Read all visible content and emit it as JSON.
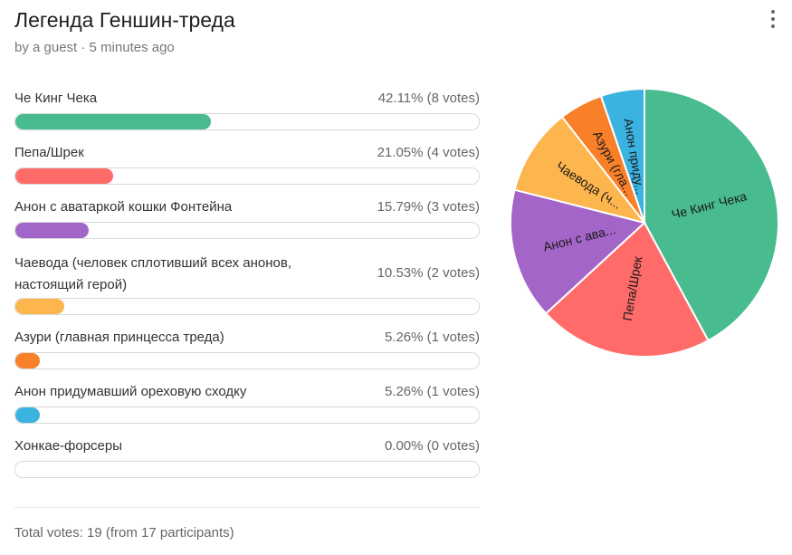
{
  "poll": {
    "title": "Легенда Геншин-треда",
    "meta": "by a guest · 5 minutes ago",
    "menu_icon": "more-vertical-icon",
    "options": [
      {
        "label": "Че Кинг Чека",
        "stats": "42.11% (8 votes)",
        "percent": 42.11,
        "votes": 8,
        "color": "#48BB8F",
        "pie_label": "Че Кинг Чека"
      },
      {
        "label": "Пепа/Шрек",
        "stats": "21.05% (4 votes)",
        "percent": 21.05,
        "votes": 4,
        "color": "#FF6B69",
        "pie_label": "Пепа/Шрек"
      },
      {
        "label": "Анон с аватаркой кошки Фонтейна",
        "stats": "15.79% (3 votes)",
        "percent": 15.79,
        "votes": 3,
        "color": "#A465C8",
        "pie_label": "Анон с ава..."
      },
      {
        "label": "Чаевода (человек сплотивший всех анонов, настоящий герой)",
        "stats": "10.53% (2 votes)",
        "percent": 10.53,
        "votes": 2,
        "color": "#FDB54D",
        "pie_label": "Чаевода (ч..."
      },
      {
        "label": "Азури (главная принцесса треда)",
        "stats": "5.26% (1 votes)",
        "percent": 5.26,
        "votes": 1,
        "color": "#F98028",
        "pie_label": "Азури (гла..."
      },
      {
        "label": "Анон придумавший ореховую сходку",
        "stats": "5.26% (1 votes)",
        "percent": 5.26,
        "votes": 1,
        "color": "#3BB3E0",
        "pie_label": "Анон приду..."
      },
      {
        "label": "Хонкае-форсеры",
        "stats": "0.00% (0 votes)",
        "percent": 0,
        "votes": 0,
        "color": "#cccccc",
        "pie_label": ""
      }
    ],
    "total": "Total votes: 19 (from 17 participants)"
  }
}
